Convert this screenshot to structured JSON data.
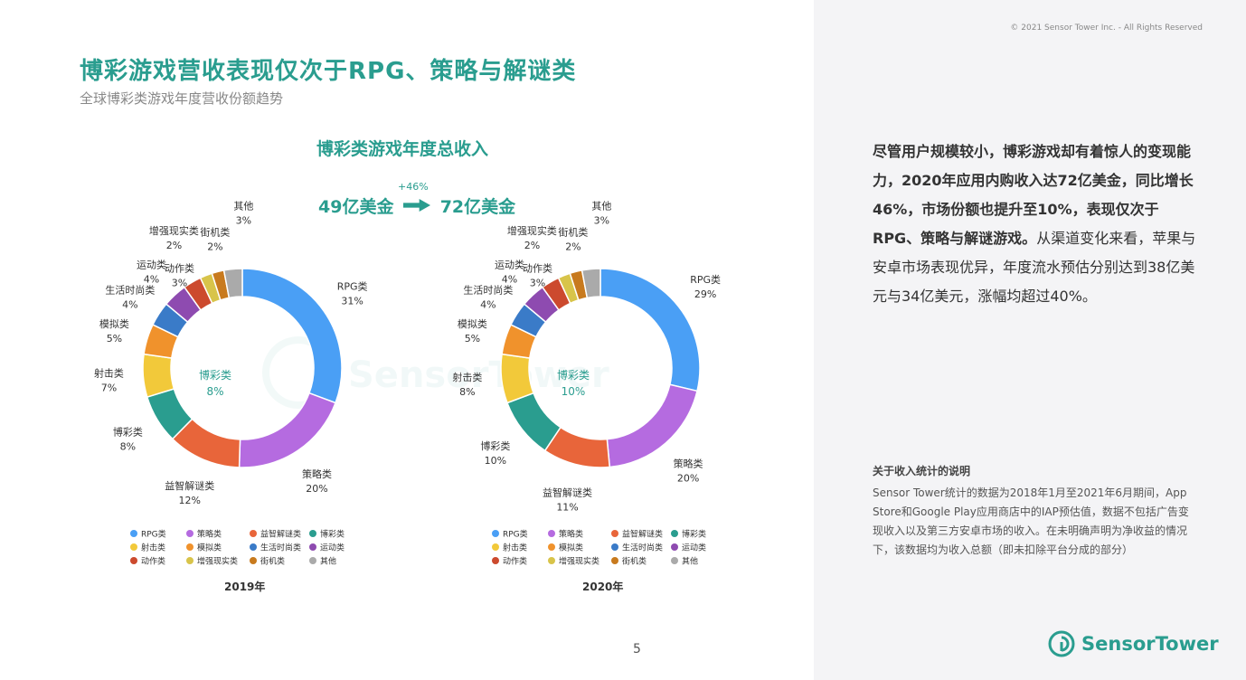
{
  "copyright": "© 2021 Sensor Tower Inc. - All Rights Reserved",
  "title": "博彩游戏营收表现仅次于RPG、策略与解谜类",
  "subtitle": "全球博彩类游戏年度营收份额趋势",
  "chart_heading": "博彩类游戏年度总收入",
  "growth": {
    "from": "49亿美金",
    "to": "72亿美金",
    "pct": "+46%"
  },
  "main_text": [
    {
      "text": "尽管用户规模较小，博彩游戏却有着惊人的变现能力，2020年应用内购收入达72亿美金，同比增长46%，市场份额也提升至10%，表现仅次于RPG、策略与解谜游戏。",
      "bold": true
    },
    {
      "text": "从渠道变化来看，苹果与安卓市场表现优异，年度流水预估分别达到38亿美元与34亿美元，涨幅均超过40%。",
      "bold": false
    }
  ],
  "note_title": "关于收入统计的说明",
  "note_body": "Sensor Tower统计的数据为2018年1月至2021年6月期间，App Store和Google Play应用商店中的IAP预估值，数据不包括广告变现收入以及第三方安卓市场的收入。在未明确声明为净收益的情况下，该数据均为收入总额（即未扣除平台分成的部分）",
  "page_number": "5",
  "brand": "SensorTower",
  "colors": {
    "accent": "#2a9d8f",
    "RPG类": "#4a9ff5",
    "策略类": "#b56be0",
    "益智解谜类": "#e8653a",
    "博彩类": "#2a9d8f",
    "射击类": "#f2c93a",
    "模拟类": "#f0922c",
    "生活时尚类": "#3a7bc8",
    "运动类": "#8e4bb0",
    "动作类": "#cc4a2e",
    "增强现实类": "#d8c44a",
    "街机类": "#c87a1e",
    "其他": "#aaaaaa"
  },
  "chart_data": [
    {
      "type": "pie",
      "year": "2019年",
      "center_label": "博彩类",
      "center_value": "8%",
      "categories": [
        "RPG类",
        "策略类",
        "益智解谜类",
        "博彩类",
        "射击类",
        "模拟类",
        "生活时尚类",
        "运动类",
        "动作类",
        "增强现实类",
        "街机类",
        "其他"
      ],
      "values": [
        31,
        20,
        12,
        8,
        7,
        5,
        4,
        4,
        3,
        2,
        2,
        3
      ],
      "labels": [
        "31%",
        "20%",
        "12%",
        "8%",
        "7%",
        "5%",
        "4%",
        "4%",
        "3%",
        "2%",
        "2%",
        "3%"
      ]
    },
    {
      "type": "pie",
      "year": "2020年",
      "center_label": "博彩类",
      "center_value": "10%",
      "categories": [
        "RPG类",
        "策略类",
        "益智解谜类",
        "博彩类",
        "射击类",
        "模拟类",
        "生活时尚类",
        "运动类",
        "动作类",
        "增强现实类",
        "街机类",
        "其他"
      ],
      "values": [
        29,
        20,
        11,
        10,
        8,
        5,
        4,
        4,
        3,
        2,
        2,
        3
      ],
      "labels": [
        "29%",
        "20%",
        "11%",
        "10%",
        "8%",
        "5%",
        "4%",
        "4%",
        "3%",
        "2%",
        "2%",
        "3%"
      ]
    }
  ],
  "legend": [
    "RPG类",
    "策略类",
    "益智解谜类",
    "博彩类",
    "射击类",
    "模拟类",
    "生活时尚类",
    "运动类",
    "动作类",
    "增强现实类",
    "街机类",
    "其他"
  ]
}
